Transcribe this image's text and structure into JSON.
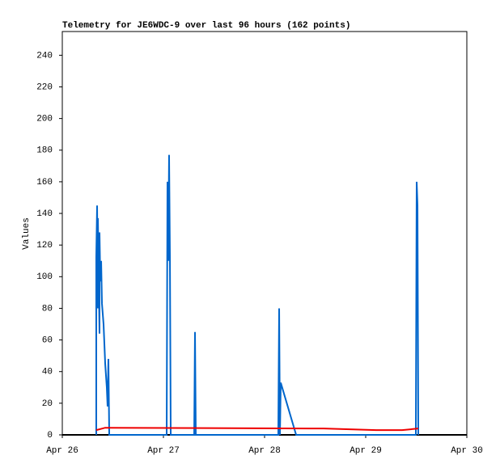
{
  "chart_data": {
    "type": "line",
    "title": "Telemetry for JE6WDC-9 over last 96 hours (162 points)",
    "ylabel": "Values",
    "xlim": [
      0,
      96
    ],
    "xticks": [
      {
        "value": 0,
        "label": "Apr 26"
      },
      {
        "value": 24,
        "label": "Apr 27"
      },
      {
        "value": 48,
        "label": "Apr 28"
      },
      {
        "value": 72,
        "label": "Apr 29"
      },
      {
        "value": 96,
        "label": "Apr 30"
      }
    ],
    "ylim": [
      0,
      255
    ],
    "yticks": [
      0,
      20,
      40,
      60,
      80,
      100,
      120,
      140,
      160,
      180,
      200,
      220,
      240
    ],
    "series": [
      {
        "color": "#0066cc",
        "x": [
          8.06,
          8.06,
          8.26,
          8.45,
          8.45,
          8.64,
          8.83,
          8.83,
          9.02,
          9.22,
          9.41,
          9.79,
          9.98,
          10.18,
          10.56,
          10.75,
          10.94,
          11.14,
          24.77,
          24.96,
          25.15,
          25.34,
          25.54,
          25.73,
          31.3,
          31.49,
          31.68,
          51.26,
          51.46,
          51.65,
          51.84,
          55.49,
          83.9,
          84.1,
          84.29,
          84.48
        ],
        "values": [
          0,
          112,
          145,
          80,
          137,
          100,
          64,
          128,
          97,
          110,
          83,
          70,
          58,
          45,
          30,
          18,
          48,
          0,
          0,
          160,
          110,
          177,
          112,
          0,
          0,
          65,
          0,
          0,
          80,
          0,
          33,
          0,
          0,
          160,
          145,
          0
        ]
      },
      {
        "color": "#ee0000",
        "x": [
          8.06,
          10.18,
          62.02,
          74.5,
          80.64,
          84.48
        ],
        "values": [
          3,
          4.5,
          4,
          3,
          3,
          4
        ]
      }
    ]
  }
}
